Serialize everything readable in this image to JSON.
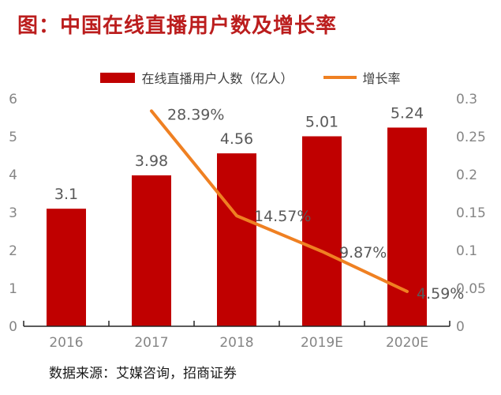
{
  "title": "图：中国在线直播用户数及增长率",
  "source": "数据来源：艾媒咨询，招商证券",
  "colors": {
    "title": "#bb1d1d",
    "bar": "#c00000",
    "line": "#ef8022",
    "axis_tick_label": "#858585",
    "value_label": "#595959",
    "legend_text": "#404040",
    "axis_line": "#262626",
    "source_text": "#1a1a1a",
    "background": "#ffffff"
  },
  "chart_data": {
    "type": "bar",
    "combo": "bar+line",
    "title": "图：中国在线直播用户数及增长率",
    "categories": [
      "2016",
      "2017",
      "2018",
      "2019E",
      "2020E"
    ],
    "series": [
      {
        "name": "在线直播用户人数（亿人）",
        "type": "bar",
        "axis": "left",
        "values": [
          3.1,
          3.98,
          4.56,
          5.01,
          5.24
        ],
        "labels": [
          "3.1",
          "3.98",
          "4.56",
          "5.01",
          "5.24"
        ]
      },
      {
        "name": "增长率",
        "type": "line",
        "axis": "right",
        "values": [
          null,
          0.2839,
          0.1457,
          0.0987,
          0.0459
        ],
        "labels": [
          null,
          "28.39%",
          "14.57%",
          "9.87%",
          "4.59%"
        ]
      }
    ],
    "left_axis": {
      "min": 0,
      "max": 6,
      "step": 1,
      "ticks": [
        "0",
        "1",
        "2",
        "3",
        "4",
        "5",
        "6"
      ]
    },
    "right_axis": {
      "min": 0,
      "max": 0.3,
      "step": 0.05,
      "ticks": [
        "0",
        "0.05",
        "0.1",
        "0.15",
        "0.2",
        "0.25",
        "0.3"
      ]
    },
    "legend_position": "top-center",
    "grid": false,
    "xlabel": "",
    "ylabel_left": "在线直播用户人数（亿人）",
    "ylabel_right": "增长率"
  }
}
